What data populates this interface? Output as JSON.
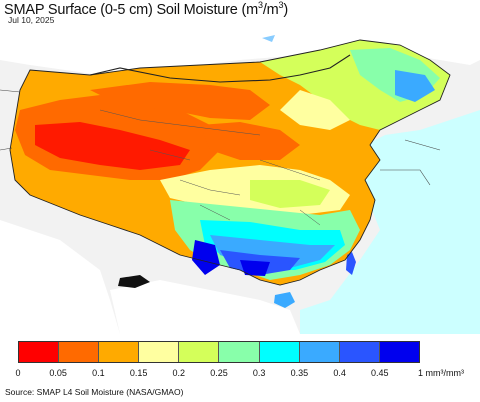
{
  "title": "SMAP Surface (0-5 cm) Soil Moisture (m",
  "title_unit_sup": "3",
  "title_mid": "/m",
  "title_unit_sup2": "3",
  "title_end": ")",
  "date": "Jul 10, 2025",
  "legend": {
    "colors": [
      "#ff0000",
      "#ff6a00",
      "#ffaa00",
      "#ffffa0",
      "#d4ff5a",
      "#88ffaa",
      "#00ffff",
      "#3aaaff",
      "#2a55ff",
      "#0000ee"
    ],
    "ticks": [
      "0",
      "0.05",
      "0.1",
      "0.15",
      "0.2",
      "0.25",
      "0.3",
      "0.35",
      "0.4",
      "0.45"
    ],
    "unit_label": "1 mm³/mm³"
  },
  "source": "Source: SMAP L4 Soil Moisture (NASA/GMAO)"
}
